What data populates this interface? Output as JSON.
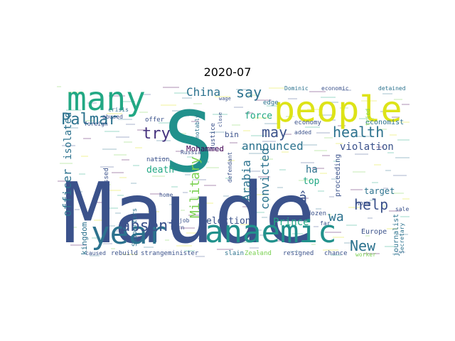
{
  "title": "2020-07",
  "words": [
    {
      "text": "Maude",
      "color": "#3b528b"
    },
    {
      "text": "S",
      "color": "#21918c"
    },
    {
      "text": "people",
      "color": "#dde318"
    },
    {
      "text": "many",
      "color": "#22a884"
    },
    {
      "text": "year",
      "color": "#2c728e"
    },
    {
      "text": "anaemic",
      "color": "#21918c"
    },
    {
      "text": "Palmar",
      "color": "#2c728e"
    },
    {
      "text": "health",
      "color": "#2c728e"
    },
    {
      "text": "try",
      "color": "#46327e"
    },
    {
      "text": "help",
      "color": "#3b528b"
    },
    {
      "text": "absent",
      "color": "#3b528b"
    },
    {
      "text": "New",
      "color": "#2c728e"
    },
    {
      "text": "say",
      "color": "#2c728e"
    },
    {
      "text": "may",
      "color": "#3b528b"
    },
    {
      "text": "China",
      "color": "#2c728e"
    },
    {
      "text": "Military",
      "color": "#7ad151"
    },
    {
      "text": "officer",
      "color": "#2c728e"
    },
    {
      "text": "isolated",
      "color": "#2c728e"
    },
    {
      "text": "convicted",
      "color": "#2c728e"
    },
    {
      "text": "Arabia",
      "color": "#2c728e"
    },
    {
      "text": "announced",
      "color": "#2c728e"
    },
    {
      "text": "violation",
      "color": "#3b528b"
    },
    {
      "text": "Mohammed",
      "color": "#440154"
    },
    {
      "text": "election",
      "color": "#3b528b"
    },
    {
      "text": "Prince",
      "color": "#22a884"
    },
    {
      "text": "force",
      "color": "#22a884"
    },
    {
      "text": "death",
      "color": "#22a884"
    },
    {
      "text": "target",
      "color": "#2c728e"
    },
    {
      "text": "wa",
      "color": "#2c728e"
    },
    {
      "text": "ha",
      "color": "#2c728e"
    },
    {
      "text": "top",
      "color": "#22a884"
    },
    {
      "text": "bin",
      "color": "#3b528b"
    },
    {
      "text": "kingdom",
      "color": "#2c728e"
    },
    {
      "text": "journalist",
      "color": "#2c728e"
    },
    {
      "text": "Europe",
      "color": "#3b528b"
    },
    {
      "text": "economist",
      "color": "#2c728e"
    },
    {
      "text": "proceeding",
      "color": "#3b528b"
    },
    {
      "text": "Supporters",
      "color": "#2c728e"
    },
    {
      "text": "expressed",
      "color": "#3b528b"
    },
    {
      "text": "nation",
      "color": "#3b528b"
    },
    {
      "text": "economy",
      "color": "#3b528b"
    },
    {
      "text": "Zealand",
      "color": "#7ad151"
    },
    {
      "text": "resigned",
      "color": "#3b528b"
    },
    {
      "text": "minister",
      "color": "#3b528b"
    },
    {
      "text": "rebuild",
      "color": "#3b528b"
    },
    {
      "text": "strange",
      "color": "#3b528b"
    },
    {
      "text": "slain",
      "color": "#2c728e"
    },
    {
      "text": "chance",
      "color": "#3b528b"
    },
    {
      "text": "hope",
      "color": "#3b528b"
    },
    {
      "text": "dozen",
      "color": "#3b528b"
    },
    {
      "text": "worker",
      "color": "#7ad151"
    },
    {
      "text": "caused",
      "color": "#3b528b"
    },
    {
      "text": "turn",
      "color": "#3b528b"
    },
    {
      "text": "justice",
      "color": "#3b528b"
    },
    {
      "text": "notably",
      "color": "#2c728e"
    },
    {
      "text": "defendant",
      "color": "#3b528b"
    },
    {
      "text": "edge",
      "color": "#2c728e"
    },
    {
      "text": "Dominic",
      "color": "#2c728e"
    },
    {
      "text": "economic",
      "color": "#3b528b"
    },
    {
      "text": "detained",
      "color": "#2c728e"
    },
    {
      "text": "offer",
      "color": "#3b528b"
    },
    {
      "text": "crisis",
      "color": "#2c728e"
    },
    {
      "text": "Secretary",
      "color": "#2c728e"
    },
    {
      "text": "tried",
      "color": "#7ad151"
    },
    {
      "text": "added",
      "color": "#3b528b"
    },
    {
      "text": "Russia",
      "color": "#3b528b"
    },
    {
      "text": "home",
      "color": "#3b528b"
    },
    {
      "text": "abused",
      "color": "#3b528b"
    },
    {
      "text": "foreign",
      "color": "#3b528b"
    },
    {
      "text": "job",
      "color": "#3b528b"
    },
    {
      "text": "sale",
      "color": "#3b528b"
    },
    {
      "text": "wage",
      "color": "#3b528b"
    },
    {
      "text": "close",
      "color": "#3b528b"
    },
    {
      "text": "far",
      "color": "#3b528b"
    },
    {
      "text": "â",
      "color": "#3b528b"
    }
  ]
}
